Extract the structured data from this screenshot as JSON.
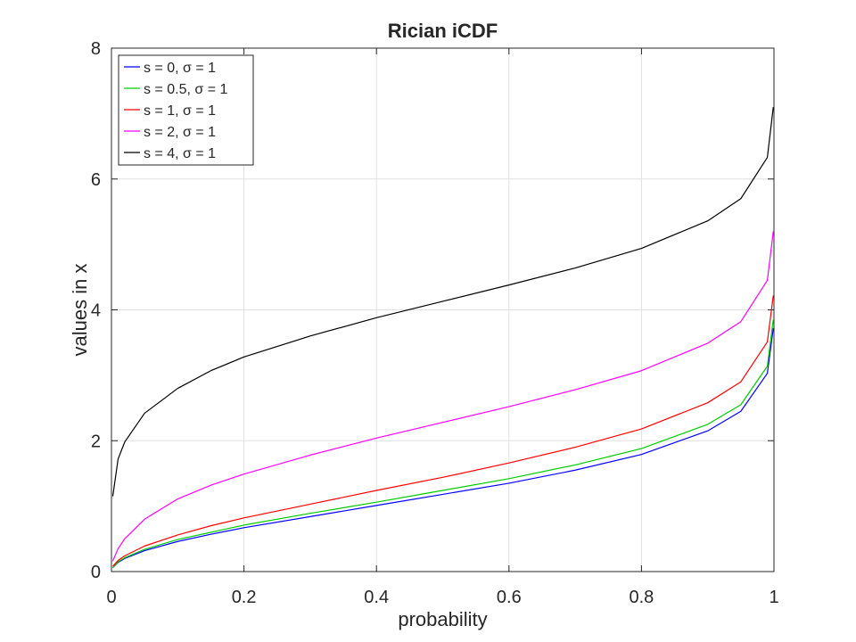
{
  "chart_data": {
    "type": "line",
    "title": "Rician iCDF",
    "xlabel": "probability",
    "ylabel": "values in x",
    "xlim": [
      0,
      1
    ],
    "ylim": [
      0,
      8
    ],
    "xticks": [
      "0",
      "0.2",
      "0.4",
      "0.6",
      "0.8",
      "1"
    ],
    "yticks": [
      "0",
      "2",
      "4",
      "6",
      "8"
    ],
    "grid": true,
    "legend_position": "top-left",
    "x": [
      0.002,
      0.01,
      0.02,
      0.05,
      0.1,
      0.15,
      0.2,
      0.3,
      0.4,
      0.5,
      0.6,
      0.7,
      0.8,
      0.9,
      0.95,
      0.99,
      0.999
    ],
    "series": [
      {
        "name": "s = 0, σ = 1",
        "color": "#0000ff",
        "values": [
          0.06,
          0.14,
          0.2,
          0.32,
          0.46,
          0.57,
          0.67,
          0.84,
          1.01,
          1.18,
          1.35,
          1.55,
          1.79,
          2.15,
          2.45,
          3.03,
          3.72
        ]
      },
      {
        "name": "s = 0.5, σ = 1",
        "color": "#00cc00",
        "values": [
          0.06,
          0.15,
          0.21,
          0.34,
          0.49,
          0.6,
          0.71,
          0.89,
          1.06,
          1.24,
          1.42,
          1.63,
          1.88,
          2.25,
          2.55,
          3.14,
          3.85
        ]
      },
      {
        "name": "s = 1, σ = 1",
        "color": "#ff0000",
        "values": [
          0.08,
          0.17,
          0.24,
          0.39,
          0.56,
          0.7,
          0.82,
          1.03,
          1.24,
          1.44,
          1.66,
          1.9,
          2.18,
          2.58,
          2.9,
          3.51,
          4.22
        ]
      },
      {
        "name": "s = 2, σ = 1",
        "color": "#ff00ff",
        "values": [
          0.16,
          0.35,
          0.5,
          0.8,
          1.11,
          1.32,
          1.49,
          1.78,
          2.04,
          2.28,
          2.52,
          2.78,
          3.07,
          3.49,
          3.82,
          4.45,
          5.2
        ]
      },
      {
        "name": "s = 4, σ = 1",
        "color": "#000000",
        "values": [
          1.15,
          1.72,
          1.98,
          2.42,
          2.8,
          3.07,
          3.28,
          3.6,
          3.88,
          4.13,
          4.38,
          4.64,
          4.94,
          5.36,
          5.7,
          6.33,
          7.1
        ]
      }
    ]
  }
}
